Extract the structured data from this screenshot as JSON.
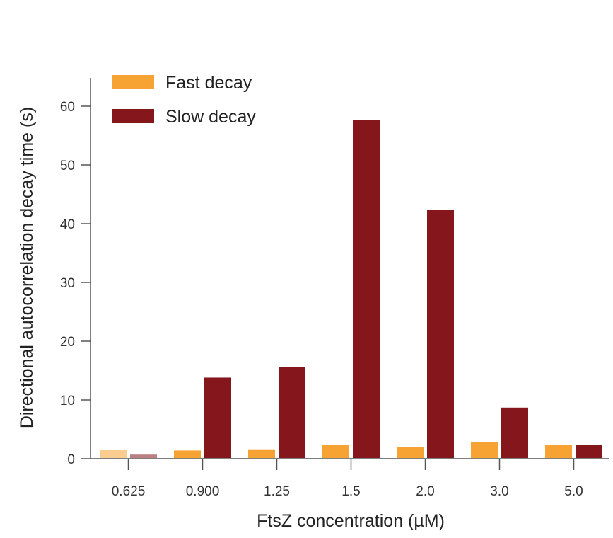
{
  "chart_data": {
    "type": "bar",
    "title": "",
    "xlabel": "FtsZ concentration (µM)",
    "ylabel": "Directional autocorrelation decay time (s)",
    "categories": [
      "0.625",
      "0.900",
      "1.25",
      "1.5",
      "2.0",
      "3.0",
      "5.0"
    ],
    "ylim": [
      0,
      65
    ],
    "yticks": [
      0,
      10,
      20,
      30,
      40,
      50,
      60
    ],
    "grid": false,
    "legend_position": "top-left",
    "series": [
      {
        "name": "Fast decay",
        "color": "#F6A333",
        "values": [
          1.5,
          1.4,
          1.6,
          2.4,
          2.0,
          2.8,
          2.4
        ],
        "faded": [
          true,
          false,
          false,
          false,
          false,
          false,
          false
        ]
      },
      {
        "name": "Slow decay",
        "color": "#85161B",
        "values": [
          0.7,
          13.8,
          15.6,
          57.7,
          42.3,
          8.7,
          2.4
        ],
        "faded": [
          true,
          false,
          false,
          false,
          false,
          false,
          false
        ]
      }
    ]
  }
}
